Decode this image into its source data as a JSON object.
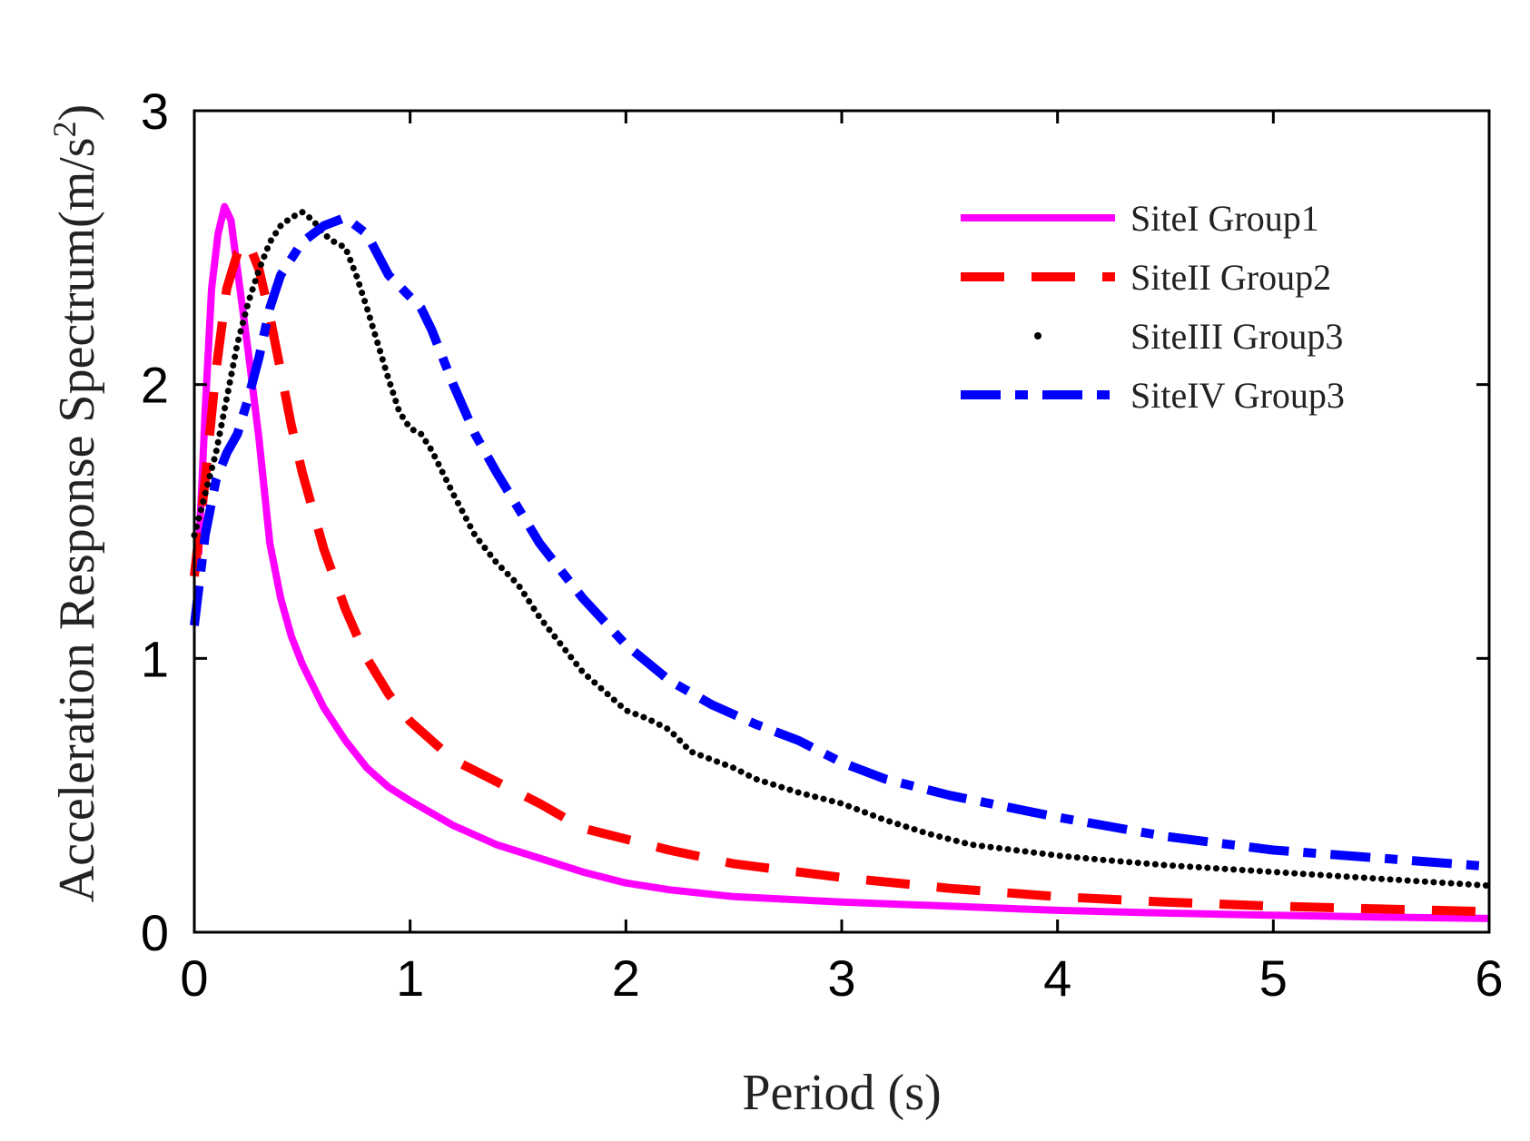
{
  "chart_data": {
    "type": "line",
    "title": "",
    "xlabel": "Period (s)",
    "ylabel": "Acceleration Response Spectrum(m/s",
    "ylabel_sup": "2",
    "ylabel_close": ")",
    "xlim": [
      0,
      6
    ],
    "ylim": [
      0,
      3
    ],
    "xticks": [
      "0",
      "1",
      "2",
      "3",
      "4",
      "5",
      "6"
    ],
    "yticks": [
      "0",
      "1",
      "2",
      "3"
    ],
    "grid": false,
    "legend_position": "top-right",
    "series": [
      {
        "name": "SiteI Group1",
        "style": "solid",
        "color": "#ff00ff",
        "points": [
          [
            0.02,
            1.38
          ],
          [
            0.05,
            1.9
          ],
          [
            0.08,
            2.35
          ],
          [
            0.11,
            2.55
          ],
          [
            0.14,
            2.65
          ],
          [
            0.17,
            2.6
          ],
          [
            0.2,
            2.42
          ],
          [
            0.25,
            2.12
          ],
          [
            0.3,
            1.8
          ],
          [
            0.35,
            1.42
          ],
          [
            0.4,
            1.22
          ],
          [
            0.45,
            1.08
          ],
          [
            0.5,
            0.98
          ],
          [
            0.6,
            0.82
          ],
          [
            0.7,
            0.7
          ],
          [
            0.8,
            0.6
          ],
          [
            0.9,
            0.53
          ],
          [
            1.0,
            0.48
          ],
          [
            1.2,
            0.39
          ],
          [
            1.4,
            0.32
          ],
          [
            1.6,
            0.27
          ],
          [
            1.8,
            0.22
          ],
          [
            2.0,
            0.18
          ],
          [
            2.2,
            0.155
          ],
          [
            2.5,
            0.13
          ],
          [
            3.0,
            0.11
          ],
          [
            3.5,
            0.095
          ],
          [
            4.0,
            0.08
          ],
          [
            4.5,
            0.07
          ],
          [
            5.0,
            0.062
          ],
          [
            5.5,
            0.055
          ],
          [
            6.0,
            0.05
          ]
        ]
      },
      {
        "name": "SiteII Group2",
        "style": "dashed",
        "color": "#ff0000",
        "points": [
          [
            0.0,
            1.3
          ],
          [
            0.05,
            1.65
          ],
          [
            0.1,
            2.05
          ],
          [
            0.15,
            2.35
          ],
          [
            0.2,
            2.48
          ],
          [
            0.25,
            2.52
          ],
          [
            0.3,
            2.42
          ],
          [
            0.35,
            2.25
          ],
          [
            0.4,
            2.05
          ],
          [
            0.45,
            1.85
          ],
          [
            0.5,
            1.68
          ],
          [
            0.6,
            1.4
          ],
          [
            0.7,
            1.18
          ],
          [
            0.8,
            1.0
          ],
          [
            0.9,
            0.87
          ],
          [
            1.0,
            0.77
          ],
          [
            1.2,
            0.63
          ],
          [
            1.4,
            0.55
          ],
          [
            1.6,
            0.47
          ],
          [
            1.8,
            0.38
          ],
          [
            2.0,
            0.34
          ],
          [
            2.2,
            0.3
          ],
          [
            2.5,
            0.25
          ],
          [
            3.0,
            0.2
          ],
          [
            3.5,
            0.16
          ],
          [
            4.0,
            0.13
          ],
          [
            4.5,
            0.11
          ],
          [
            5.0,
            0.095
          ],
          [
            5.5,
            0.085
          ],
          [
            6.0,
            0.075
          ]
        ]
      },
      {
        "name": "SiteIII Group3",
        "style": "dotted",
        "color": "#000000",
        "points": [
          [
            0.0,
            1.45
          ],
          [
            0.05,
            1.6
          ],
          [
            0.1,
            1.75
          ],
          [
            0.15,
            1.95
          ],
          [
            0.2,
            2.15
          ],
          [
            0.25,
            2.3
          ],
          [
            0.3,
            2.42
          ],
          [
            0.35,
            2.52
          ],
          [
            0.4,
            2.58
          ],
          [
            0.45,
            2.61
          ],
          [
            0.5,
            2.63
          ],
          [
            0.55,
            2.6
          ],
          [
            0.6,
            2.55
          ],
          [
            0.65,
            2.52
          ],
          [
            0.7,
            2.5
          ],
          [
            0.75,
            2.4
          ],
          [
            0.8,
            2.28
          ],
          [
            0.85,
            2.15
          ],
          [
            0.9,
            2.02
          ],
          [
            0.95,
            1.9
          ],
          [
            1.0,
            1.84
          ],
          [
            1.05,
            1.82
          ],
          [
            1.1,
            1.76
          ],
          [
            1.2,
            1.6
          ],
          [
            1.3,
            1.45
          ],
          [
            1.4,
            1.35
          ],
          [
            1.5,
            1.27
          ],
          [
            1.6,
            1.15
          ],
          [
            1.7,
            1.05
          ],
          [
            1.8,
            0.95
          ],
          [
            1.9,
            0.88
          ],
          [
            2.0,
            0.81
          ],
          [
            2.1,
            0.78
          ],
          [
            2.2,
            0.74
          ],
          [
            2.3,
            0.66
          ],
          [
            2.4,
            0.63
          ],
          [
            2.5,
            0.6
          ],
          [
            2.6,
            0.56
          ],
          [
            2.8,
            0.51
          ],
          [
            3.0,
            0.47
          ],
          [
            3.2,
            0.41
          ],
          [
            3.4,
            0.36
          ],
          [
            3.6,
            0.32
          ],
          [
            3.8,
            0.3
          ],
          [
            4.0,
            0.28
          ],
          [
            4.2,
            0.265
          ],
          [
            4.5,
            0.245
          ],
          [
            5.0,
            0.22
          ],
          [
            5.5,
            0.195
          ],
          [
            6.0,
            0.17
          ]
        ]
      },
      {
        "name": "SiteIV Group3",
        "style": "dashdot",
        "color": "#0000ff",
        "points": [
          [
            0.0,
            1.12
          ],
          [
            0.05,
            1.45
          ],
          [
            0.1,
            1.65
          ],
          [
            0.15,
            1.75
          ],
          [
            0.2,
            1.82
          ],
          [
            0.25,
            1.95
          ],
          [
            0.3,
            2.1
          ],
          [
            0.35,
            2.28
          ],
          [
            0.4,
            2.4
          ],
          [
            0.5,
            2.52
          ],
          [
            0.6,
            2.58
          ],
          [
            0.7,
            2.61
          ],
          [
            0.8,
            2.55
          ],
          [
            0.9,
            2.4
          ],
          [
            1.0,
            2.32
          ],
          [
            1.05,
            2.28
          ],
          [
            1.1,
            2.2
          ],
          [
            1.2,
            2.0
          ],
          [
            1.3,
            1.82
          ],
          [
            1.4,
            1.68
          ],
          [
            1.5,
            1.55
          ],
          [
            1.6,
            1.42
          ],
          [
            1.7,
            1.32
          ],
          [
            1.8,
            1.22
          ],
          [
            2.0,
            1.05
          ],
          [
            2.2,
            0.92
          ],
          [
            2.4,
            0.83
          ],
          [
            2.6,
            0.76
          ],
          [
            2.8,
            0.7
          ],
          [
            3.0,
            0.62
          ],
          [
            3.2,
            0.56
          ],
          [
            3.5,
            0.5
          ],
          [
            4.0,
            0.42
          ],
          [
            4.5,
            0.35
          ],
          [
            5.0,
            0.3
          ],
          [
            5.5,
            0.27
          ],
          [
            6.0,
            0.24
          ]
        ]
      }
    ]
  }
}
